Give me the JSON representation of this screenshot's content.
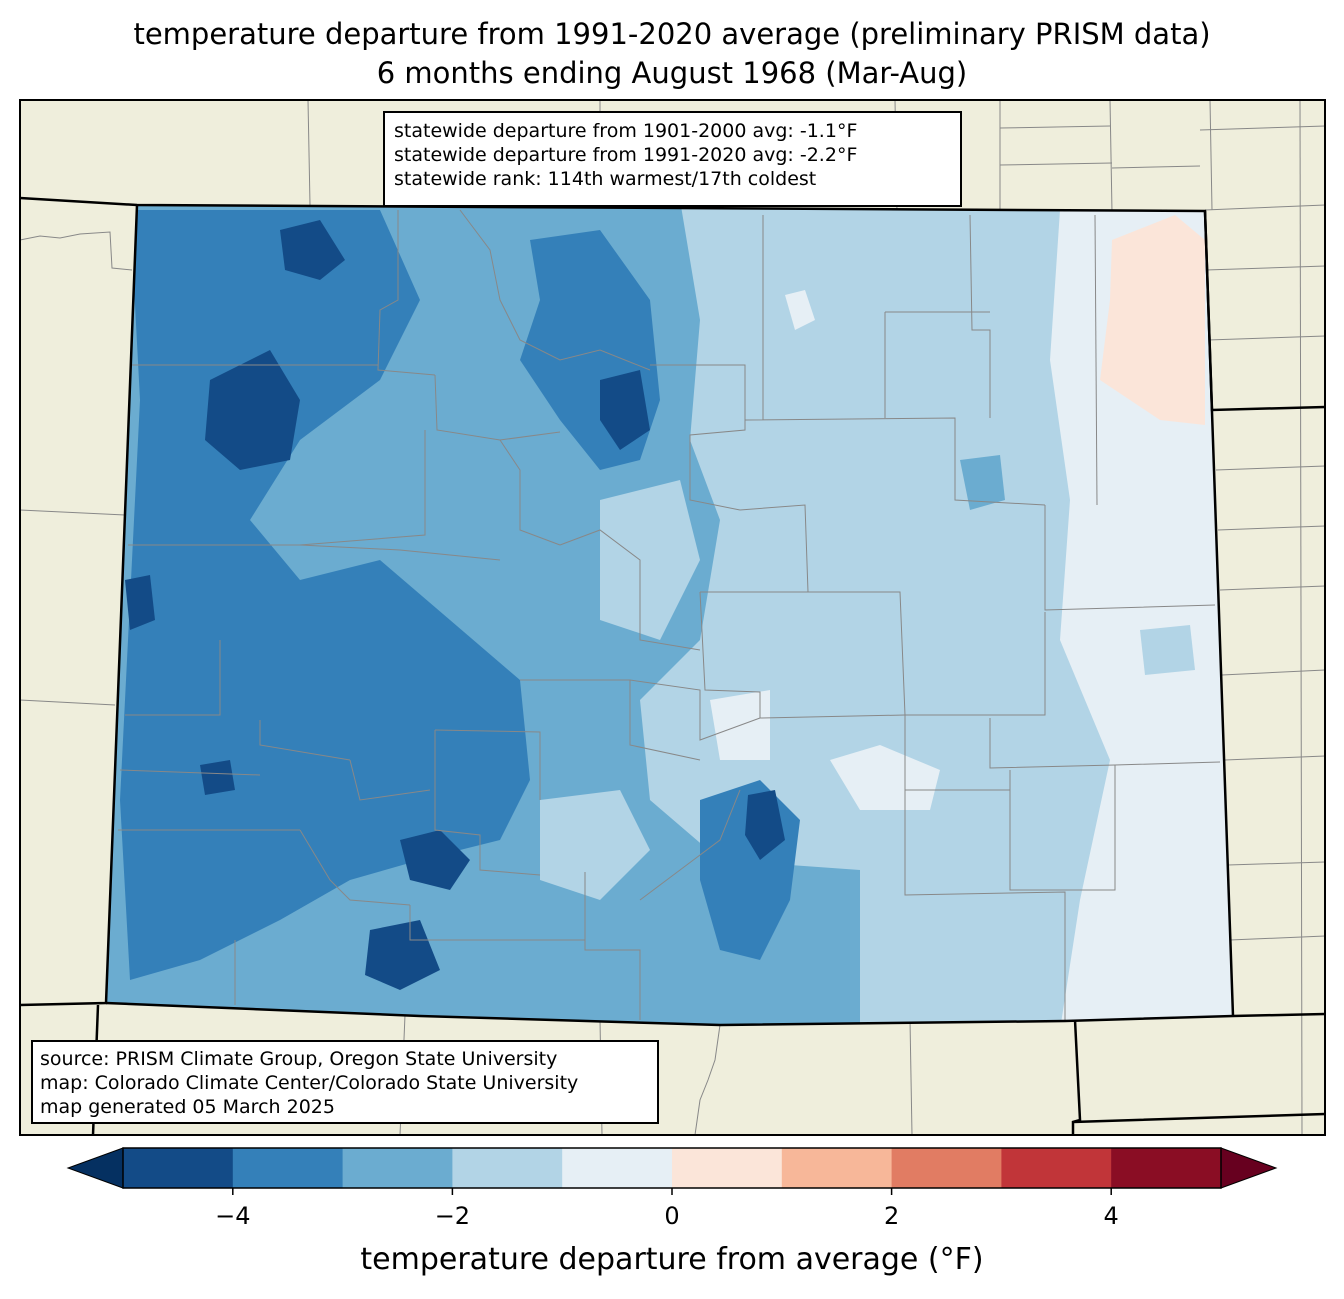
{
  "title": {
    "line1": "temperature departure from 1991-2020 average (preliminary PRISM data)",
    "line2": "6 months ending August 1968 (Mar-Aug)"
  },
  "stats": {
    "line1": "statewide departure from 1901-2000 avg: -1.1°F",
    "line2": "statewide departure from 1991-2020 avg: -2.2°F",
    "line3": "statewide rank: 114th warmest/17th coldest"
  },
  "source": {
    "line1": "source: PRISM Climate Group, Oregon State University",
    "line2": "map: Colorado Climate Center/Colorado State University",
    "line3": "map generated 05 March 2025"
  },
  "colorbar": {
    "label": "temperature departure from average (°F)",
    "ticks": [
      "−4",
      "−2",
      "0",
      "2",
      "4"
    ],
    "tick_values": [
      -4,
      -2,
      0,
      2,
      4
    ],
    "bounds": [
      -5,
      -4,
      -3,
      -2,
      -1,
      0,
      1,
      2,
      3,
      4,
      5
    ],
    "colors": [
      "#134b87",
      "#3480b9",
      "#6bacd0",
      "#b2d4e6",
      "#e6eff5",
      "#fbe5d9",
      "#f7b799",
      "#e17c63",
      "#c13539",
      "#8a0d24"
    ],
    "under_color": "#053061",
    "over_color": "#67001f"
  },
  "map_colors": {
    "land": "#efeedc",
    "county_lines": "#888888",
    "state_lines": "#000000"
  }
}
